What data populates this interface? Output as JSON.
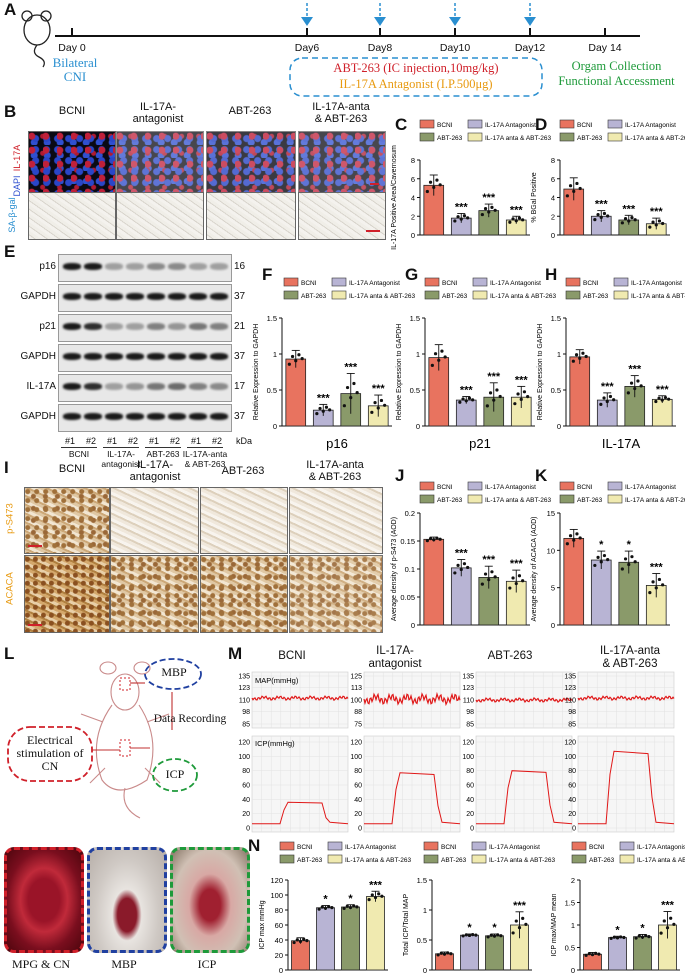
{
  "panel_letters": {
    "A": "A",
    "B": "B",
    "C": "C",
    "D": "D",
    "E": "E",
    "F": "F",
    "G": "G",
    "H": "H",
    "I": "I",
    "J": "J",
    "K": "K",
    "L": "L",
    "M": "M",
    "N": "N"
  },
  "timeline": {
    "days": [
      "Day 0",
      "Day6",
      "Day8",
      "Day10",
      "Day12",
      "Day 14"
    ],
    "bilateral": "Bilateral",
    "cni": "CNI",
    "treat1": "ABT-263 (IC injection,10mg/kg)",
    "treat2": "IL-17A Antagonist (I.P.500μg)",
    "collect1": "Orgam Collection",
    "collect2": "Functional Accessment",
    "colors": {
      "blue": "#2a8fd0",
      "red": "#d0202a",
      "orange": "#e89a10",
      "green": "#1e9a3a"
    }
  },
  "groups": {
    "bcni": "BCNI",
    "anta_l1": "IL-17A-",
    "anta_l2": "antagonist",
    "abt": "ABT-263",
    "combo_l1": "IL-17A-anta",
    "combo_l2": "& ABT-263"
  },
  "row_labels": {
    "il17a": "IL-17A",
    "dapi": "DAPI",
    "sabgal": "SA-β-gal",
    "ps473": "p-S473",
    "acaca": "ACACA"
  },
  "legend": {
    "a": "BCNI",
    "b": "IL-17A Antagonist",
    "c": "ABT-263",
    "d": "IL-17A anta & ABT-263"
  },
  "legend_colors": [
    "#e8735f",
    "#b8b4d4",
    "#8a9a6a",
    "#f0eab0"
  ],
  "blot": {
    "rows": [
      "p16",
      "GAPDH",
      "p21",
      "GAPDH",
      "IL-17A",
      "GAPDH"
    ],
    "kda": [
      "16",
      "37",
      "21",
      "37",
      "17",
      "37"
    ],
    "kda_unit": "kDa",
    "lanes": [
      "#1",
      "#2",
      "#1",
      "#2",
      "#1",
      "#2",
      "#1",
      "#2"
    ],
    "g1": "BCNI",
    "g2a": "IL-17A-",
    "g2b": "antagonist",
    "g3": "ABT-263",
    "g4a": "IL-17A-anta",
    "g4b": "& ABT-263"
  },
  "chart_data": [
    {
      "id": "C",
      "type": "bar",
      "ylabel": "IL-17A Positive Area/Cavernosum",
      "ylim": [
        0,
        8
      ],
      "yticks": [
        0,
        2,
        4,
        6,
        8
      ],
      "values": [
        5.3,
        1.8,
        2.6,
        1.6
      ],
      "err": [
        1.1,
        0.5,
        0.7,
        0.4
      ],
      "sig": [
        "",
        "***",
        "***",
        "***"
      ]
    },
    {
      "id": "D",
      "type": "bar",
      "ylabel": "% BGal Positive",
      "ylim": [
        0,
        8
      ],
      "yticks": [
        0,
        2,
        4,
        6,
        8
      ],
      "values": [
        4.9,
        2.0,
        1.6,
        1.2
      ],
      "err": [
        1.2,
        0.6,
        0.5,
        0.6
      ],
      "sig": [
        "",
        "***",
        "***",
        "***"
      ]
    },
    {
      "id": "F",
      "type": "bar",
      "ylabel": "Relative Expression to GAPDH",
      "xlabel": "p16",
      "ylim": [
        0,
        1.5
      ],
      "yticks": [
        0,
        0.5,
        1.0,
        1.5
      ],
      "values": [
        0.93,
        0.22,
        0.45,
        0.28
      ],
      "err": [
        0.12,
        0.08,
        0.28,
        0.15
      ],
      "sig": [
        "",
        "***",
        "***",
        "***"
      ]
    },
    {
      "id": "G",
      "type": "bar",
      "ylabel": "Relative Expression to GAPDH",
      "xlabel": "p21",
      "ylim": [
        0,
        1.5
      ],
      "yticks": [
        0,
        0.5,
        1.0,
        1.5
      ],
      "values": [
        0.95,
        0.36,
        0.4,
        0.4
      ],
      "err": [
        0.18,
        0.05,
        0.2,
        0.15
      ],
      "sig": [
        "",
        "***",
        "***",
        "***"
      ]
    },
    {
      "id": "H",
      "type": "bar",
      "ylabel": "Relative Expression to GAPDH",
      "xlabel": "IL-17A",
      "ylim": [
        0,
        1.5
      ],
      "yticks": [
        0,
        0.5,
        1.0,
        1.5
      ],
      "values": [
        0.96,
        0.36,
        0.55,
        0.37
      ],
      "err": [
        0.1,
        0.1,
        0.15,
        0.05
      ],
      "sig": [
        "",
        "***",
        "***",
        "***"
      ]
    },
    {
      "id": "J",
      "type": "bar",
      "ylabel": "Average density of p-S473 (AOD)",
      "ylim": [
        0,
        0.2
      ],
      "yticks": [
        0,
        0.05,
        0.1,
        0.15,
        0.2
      ],
      "values": [
        0.153,
        0.102,
        0.085,
        0.078
      ],
      "err": [
        0.004,
        0.015,
        0.02,
        0.02
      ],
      "sig": [
        "",
        "***",
        "***",
        "***"
      ]
    },
    {
      "id": "K",
      "type": "bar",
      "ylabel": "Average density of ACACA (AOD)",
      "ylim": [
        0,
        15
      ],
      "yticks": [
        0,
        5,
        10,
        15
      ],
      "values": [
        11.6,
        8.7,
        8.4,
        5.3
      ],
      "err": [
        1.2,
        1.2,
        1.5,
        1.6
      ],
      "sig": [
        "",
        "*",
        "*",
        "***"
      ]
    },
    {
      "id": "N1",
      "type": "bar",
      "ylabel": "ICP max mmHg",
      "ylim": [
        0,
        120
      ],
      "yticks": [
        0,
        20,
        40,
        60,
        80,
        100,
        120
      ],
      "values": [
        39,
        83,
        84,
        98
      ],
      "err": [
        4,
        3,
        3,
        7
      ],
      "sig": [
        "",
        "*",
        "*",
        "***"
      ]
    },
    {
      "id": "N2",
      "type": "bar",
      "ylabel": "Total ICP/Total MAP",
      "ylim": [
        0,
        1.5
      ],
      "yticks": [
        0,
        0.5,
        1.0,
        1.5
      ],
      "values": [
        0.27,
        0.58,
        0.57,
        0.75
      ],
      "err": [
        0.03,
        0.02,
        0.03,
        0.22
      ],
      "sig": [
        "",
        "*",
        "*",
        "***"
      ]
    },
    {
      "id": "N3",
      "type": "bar",
      "ylabel": "ICP max/MAP mean",
      "ylim": [
        0,
        2.0
      ],
      "yticks": [
        0,
        0.5,
        1.0,
        1.5,
        2.0
      ],
      "values": [
        0.35,
        0.72,
        0.74,
        1.0
      ],
      "err": [
        0.04,
        0.03,
        0.05,
        0.3
      ],
      "sig": [
        "",
        "*",
        "*",
        "***"
      ]
    },
    {
      "id": "M_MAP",
      "type": "line",
      "ylabel": "MAP(mmHg)",
      "yticks_top": [
        135,
        123,
        110,
        98,
        85
      ],
      "yticks_anta": [
        125,
        113,
        100,
        88,
        75
      ],
      "yticks_combo": [
        135,
        123,
        110,
        98,
        85
      ],
      "levels": [
        112,
        101,
        110,
        112
      ]
    },
    {
      "id": "M_ICP",
      "type": "line",
      "ylabel": "ICP(mmHg)",
      "ylim": [
        0,
        120
      ],
      "yticks": [
        0,
        20,
        40,
        60,
        80,
        100,
        120
      ],
      "plateau": [
        36,
        77,
        80,
        107
      ]
    }
  ],
  "schematic": {
    "mbp": "MBP",
    "data": "Data Recording",
    "elec1": "Electrical",
    "elec2": "stimulation of",
    "elec3": "CN",
    "icp": "ICP"
  },
  "photos": {
    "p1": "MPG & CN",
    "p2": "MBP",
    "p3": "ICP"
  }
}
